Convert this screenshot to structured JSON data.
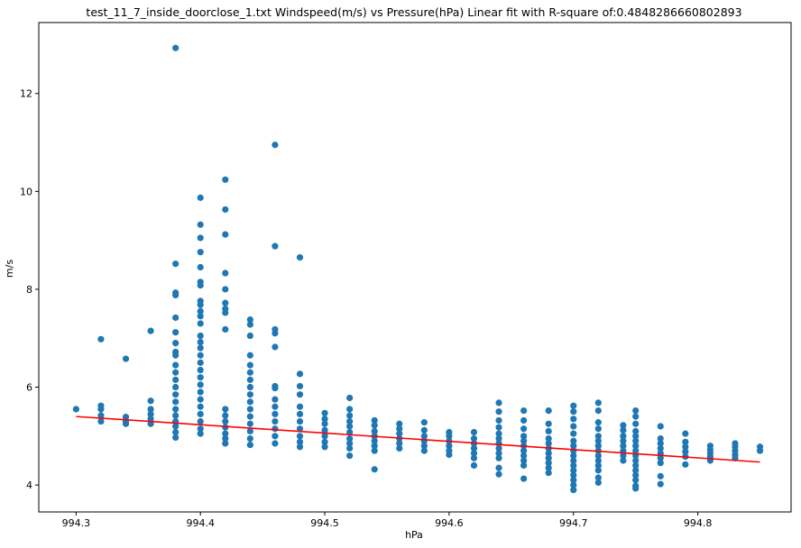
{
  "chart_data": {
    "type": "scatter",
    "title": "test_11_7_inside_doorclose_1.txt Windspeed(m/s) vs Pressure(hPa) Linear fit with R-square of:0.4848286660802893",
    "xlabel": "hPa",
    "ylabel": "m/s",
    "xlim": [
      994.27,
      994.875
    ],
    "ylim": [
      3.45,
      13.45
    ],
    "xticks": [
      994.3,
      994.4,
      994.5,
      994.6,
      994.7,
      994.8
    ],
    "xtick_labels": [
      "994.3",
      "994.4",
      "994.5",
      "994.6",
      "994.7",
      "994.8"
    ],
    "yticks": [
      4,
      6,
      8,
      10,
      12
    ],
    "ytick_labels": [
      "4",
      "6",
      "8",
      "10",
      "12"
    ],
    "grid": false,
    "colors": {
      "points": "#1f77b4",
      "fit": "#ff0000"
    },
    "series": [
      {
        "type": "scatter",
        "points": [
          [
            994.3,
            5.55
          ],
          [
            994.32,
            6.98
          ],
          [
            994.32,
            5.62
          ],
          [
            994.32,
            5.55
          ],
          [
            994.32,
            5.42
          ],
          [
            994.32,
            5.3
          ],
          [
            994.34,
            6.58
          ],
          [
            994.34,
            5.39
          ],
          [
            994.34,
            5.3
          ],
          [
            994.34,
            5.25
          ],
          [
            994.36,
            7.15
          ],
          [
            994.36,
            5.72
          ],
          [
            994.36,
            5.55
          ],
          [
            994.36,
            5.45
          ],
          [
            994.36,
            5.35
          ],
          [
            994.36,
            5.25
          ],
          [
            994.38,
            12.93
          ],
          [
            994.38,
            8.52
          ],
          [
            994.38,
            7.93
          ],
          [
            994.38,
            7.88
          ],
          [
            994.38,
            7.42
          ],
          [
            994.38,
            7.12
          ],
          [
            994.38,
            6.9
          ],
          [
            994.38,
            6.72
          ],
          [
            994.38,
            6.65
          ],
          [
            994.38,
            6.45
          ],
          [
            994.38,
            6.3
          ],
          [
            994.38,
            6.15
          ],
          [
            994.38,
            6.0
          ],
          [
            994.38,
            5.85
          ],
          [
            994.38,
            5.7
          ],
          [
            994.38,
            5.55
          ],
          [
            994.38,
            5.42
          ],
          [
            994.38,
            5.3
          ],
          [
            994.38,
            5.2
          ],
          [
            994.38,
            5.08
          ],
          [
            994.38,
            4.97
          ],
          [
            994.4,
            9.87
          ],
          [
            994.4,
            9.32
          ],
          [
            994.4,
            9.05
          ],
          [
            994.4,
            8.76
          ],
          [
            994.4,
            8.45
          ],
          [
            994.4,
            8.15
          ],
          [
            994.4,
            8.08
          ],
          [
            994.4,
            7.76
          ],
          [
            994.4,
            7.68
          ],
          [
            994.4,
            7.55
          ],
          [
            994.4,
            7.45
          ],
          [
            994.4,
            7.3
          ],
          [
            994.4,
            7.05
          ],
          [
            994.4,
            6.92
          ],
          [
            994.4,
            6.8
          ],
          [
            994.4,
            6.65
          ],
          [
            994.4,
            6.5
          ],
          [
            994.4,
            6.35
          ],
          [
            994.4,
            6.2
          ],
          [
            994.4,
            6.05
          ],
          [
            994.4,
            5.9
          ],
          [
            994.4,
            5.75
          ],
          [
            994.4,
            5.6
          ],
          [
            994.4,
            5.45
          ],
          [
            994.4,
            5.3
          ],
          [
            994.4,
            5.15
          ],
          [
            994.4,
            5.05
          ],
          [
            994.42,
            10.24
          ],
          [
            994.42,
            9.63
          ],
          [
            994.42,
            9.12
          ],
          [
            994.42,
            8.33
          ],
          [
            994.42,
            8.0
          ],
          [
            994.42,
            7.72
          ],
          [
            994.42,
            7.6
          ],
          [
            994.42,
            7.52
          ],
          [
            994.42,
            7.18
          ],
          [
            994.42,
            5.55
          ],
          [
            994.42,
            5.42
          ],
          [
            994.42,
            5.3
          ],
          [
            994.42,
            5.18
          ],
          [
            994.42,
            5.05
          ],
          [
            994.42,
            4.95
          ],
          [
            994.42,
            4.85
          ],
          [
            994.44,
            7.38
          ],
          [
            994.44,
            7.28
          ],
          [
            994.44,
            7.05
          ],
          [
            994.44,
            6.65
          ],
          [
            994.44,
            6.45
          ],
          [
            994.44,
            6.3
          ],
          [
            994.44,
            6.15
          ],
          [
            994.44,
            6.0
          ],
          [
            994.44,
            5.85
          ],
          [
            994.44,
            5.7
          ],
          [
            994.44,
            5.55
          ],
          [
            994.44,
            5.4
          ],
          [
            994.44,
            5.25
          ],
          [
            994.44,
            5.1
          ],
          [
            994.44,
            4.95
          ],
          [
            994.44,
            4.82
          ],
          [
            994.46,
            10.95
          ],
          [
            994.46,
            8.88
          ],
          [
            994.46,
            7.18
          ],
          [
            994.46,
            7.1
          ],
          [
            994.46,
            6.82
          ],
          [
            994.46,
            6.02
          ],
          [
            994.46,
            5.98
          ],
          [
            994.46,
            5.75
          ],
          [
            994.46,
            5.6
          ],
          [
            994.46,
            5.45
          ],
          [
            994.46,
            5.3
          ],
          [
            994.46,
            5.15
          ],
          [
            994.46,
            5.0
          ],
          [
            994.46,
            4.85
          ],
          [
            994.48,
            8.65
          ],
          [
            994.48,
            6.27
          ],
          [
            994.48,
            6.02
          ],
          [
            994.48,
            5.85
          ],
          [
            994.48,
            5.6
          ],
          [
            994.48,
            5.45
          ],
          [
            994.48,
            5.3
          ],
          [
            994.48,
            5.15
          ],
          [
            994.48,
            5.0
          ],
          [
            994.48,
            4.88
          ],
          [
            994.48,
            4.78
          ],
          [
            994.5,
            5.47
          ],
          [
            994.5,
            5.35
          ],
          [
            994.5,
            5.25
          ],
          [
            994.5,
            5.12
          ],
          [
            994.5,
            5.0
          ],
          [
            994.5,
            4.88
          ],
          [
            994.5,
            4.78
          ],
          [
            994.52,
            5.78
          ],
          [
            994.52,
            5.55
          ],
          [
            994.52,
            5.42
          ],
          [
            994.52,
            5.3
          ],
          [
            994.52,
            5.2
          ],
          [
            994.52,
            5.08
          ],
          [
            994.52,
            4.95
          ],
          [
            994.52,
            4.85
          ],
          [
            994.52,
            4.75
          ],
          [
            994.52,
            4.6
          ],
          [
            994.54,
            5.32
          ],
          [
            994.54,
            5.22
          ],
          [
            994.54,
            5.1
          ],
          [
            994.54,
            5.0
          ],
          [
            994.54,
            4.9
          ],
          [
            994.54,
            4.8
          ],
          [
            994.54,
            4.7
          ],
          [
            994.54,
            4.32
          ],
          [
            994.56,
            5.25
          ],
          [
            994.56,
            5.15
          ],
          [
            994.56,
            5.05
          ],
          [
            994.56,
            4.95
          ],
          [
            994.56,
            4.85
          ],
          [
            994.56,
            4.75
          ],
          [
            994.58,
            5.28
          ],
          [
            994.58,
            5.12
          ],
          [
            994.58,
            5.0
          ],
          [
            994.58,
            4.9
          ],
          [
            994.58,
            4.8
          ],
          [
            994.58,
            4.7
          ],
          [
            994.6,
            5.08
          ],
          [
            994.6,
            5.0
          ],
          [
            994.6,
            4.9
          ],
          [
            994.6,
            4.8
          ],
          [
            994.6,
            4.7
          ],
          [
            994.6,
            4.62
          ],
          [
            994.62,
            5.08
          ],
          [
            994.62,
            4.95
          ],
          [
            994.62,
            4.85
          ],
          [
            994.62,
            4.75
          ],
          [
            994.62,
            4.65
          ],
          [
            994.62,
            4.55
          ],
          [
            994.62,
            4.4
          ],
          [
            994.64,
            5.68
          ],
          [
            994.64,
            5.5
          ],
          [
            994.64,
            5.32
          ],
          [
            994.64,
            5.18
          ],
          [
            994.64,
            5.05
          ],
          [
            994.64,
            4.95
          ],
          [
            994.64,
            4.85
          ],
          [
            994.64,
            4.75
          ],
          [
            994.64,
            4.65
          ],
          [
            994.64,
            4.55
          ],
          [
            994.64,
            4.35
          ],
          [
            994.64,
            4.22
          ],
          [
            994.66,
            5.52
          ],
          [
            994.66,
            5.32
          ],
          [
            994.66,
            5.15
          ],
          [
            994.66,
            5.0
          ],
          [
            994.66,
            4.9
          ],
          [
            994.66,
            4.8
          ],
          [
            994.66,
            4.7
          ],
          [
            994.66,
            4.6
          ],
          [
            994.66,
            4.5
          ],
          [
            994.66,
            4.4
          ],
          [
            994.66,
            4.13
          ],
          [
            994.68,
            5.52
          ],
          [
            994.68,
            5.25
          ],
          [
            994.68,
            5.1
          ],
          [
            994.68,
            4.95
          ],
          [
            994.68,
            4.85
          ],
          [
            994.68,
            4.75
          ],
          [
            994.68,
            4.65
          ],
          [
            994.68,
            4.55
          ],
          [
            994.68,
            4.45
          ],
          [
            994.68,
            4.35
          ],
          [
            994.68,
            4.25
          ],
          [
            994.7,
            5.62
          ],
          [
            994.7,
            5.5
          ],
          [
            994.7,
            5.35
          ],
          [
            994.7,
            5.2
          ],
          [
            994.7,
            5.05
          ],
          [
            994.7,
            4.9
          ],
          [
            994.7,
            4.8
          ],
          [
            994.7,
            4.7
          ],
          [
            994.7,
            4.6
          ],
          [
            994.7,
            4.5
          ],
          [
            994.7,
            4.4
          ],
          [
            994.7,
            4.3
          ],
          [
            994.7,
            4.2
          ],
          [
            994.7,
            4.1
          ],
          [
            994.7,
            4.0
          ],
          [
            994.7,
            3.9
          ],
          [
            994.72,
            5.68
          ],
          [
            994.72,
            5.52
          ],
          [
            994.72,
            5.28
          ],
          [
            994.72,
            5.15
          ],
          [
            994.72,
            5.0
          ],
          [
            994.72,
            4.9
          ],
          [
            994.72,
            4.8
          ],
          [
            994.72,
            4.7
          ],
          [
            994.72,
            4.6
          ],
          [
            994.72,
            4.5
          ],
          [
            994.72,
            4.4
          ],
          [
            994.72,
            4.3
          ],
          [
            994.72,
            4.15
          ],
          [
            994.72,
            4.05
          ],
          [
            994.74,
            5.22
          ],
          [
            994.74,
            5.12
          ],
          [
            994.74,
            5.0
          ],
          [
            994.74,
            4.9
          ],
          [
            994.74,
            4.8
          ],
          [
            994.74,
            4.7
          ],
          [
            994.74,
            4.6
          ],
          [
            994.74,
            4.5
          ],
          [
            994.75,
            5.52
          ],
          [
            994.75,
            5.4
          ],
          [
            994.75,
            5.25
          ],
          [
            994.75,
            5.1
          ],
          [
            994.75,
            5.0
          ],
          [
            994.75,
            4.9
          ],
          [
            994.75,
            4.8
          ],
          [
            994.75,
            4.7
          ],
          [
            994.75,
            4.6
          ],
          [
            994.75,
            4.5
          ],
          [
            994.75,
            4.4
          ],
          [
            994.75,
            4.3
          ],
          [
            994.75,
            4.2
          ],
          [
            994.75,
            4.1
          ],
          [
            994.75,
            3.98
          ],
          [
            994.75,
            3.93
          ],
          [
            994.77,
            5.2
          ],
          [
            994.77,
            4.95
          ],
          [
            994.77,
            4.85
          ],
          [
            994.77,
            4.75
          ],
          [
            994.77,
            4.65
          ],
          [
            994.77,
            4.55
          ],
          [
            994.77,
            4.45
          ],
          [
            994.77,
            4.18
          ],
          [
            994.77,
            4.02
          ],
          [
            994.79,
            5.05
          ],
          [
            994.79,
            4.88
          ],
          [
            994.79,
            4.78
          ],
          [
            994.79,
            4.68
          ],
          [
            994.79,
            4.58
          ],
          [
            994.79,
            4.42
          ],
          [
            994.81,
            4.8
          ],
          [
            994.81,
            4.72
          ],
          [
            994.81,
            4.65
          ],
          [
            994.81,
            4.58
          ],
          [
            994.81,
            4.5
          ],
          [
            994.83,
            4.85
          ],
          [
            994.83,
            4.78
          ],
          [
            994.83,
            4.7
          ],
          [
            994.83,
            4.62
          ],
          [
            994.83,
            4.55
          ],
          [
            994.85,
            4.78
          ],
          [
            994.85,
            4.7
          ]
        ]
      },
      {
        "type": "line",
        "x": [
          994.3,
          994.85
        ],
        "y": [
          5.4,
          4.47
        ]
      }
    ]
  }
}
